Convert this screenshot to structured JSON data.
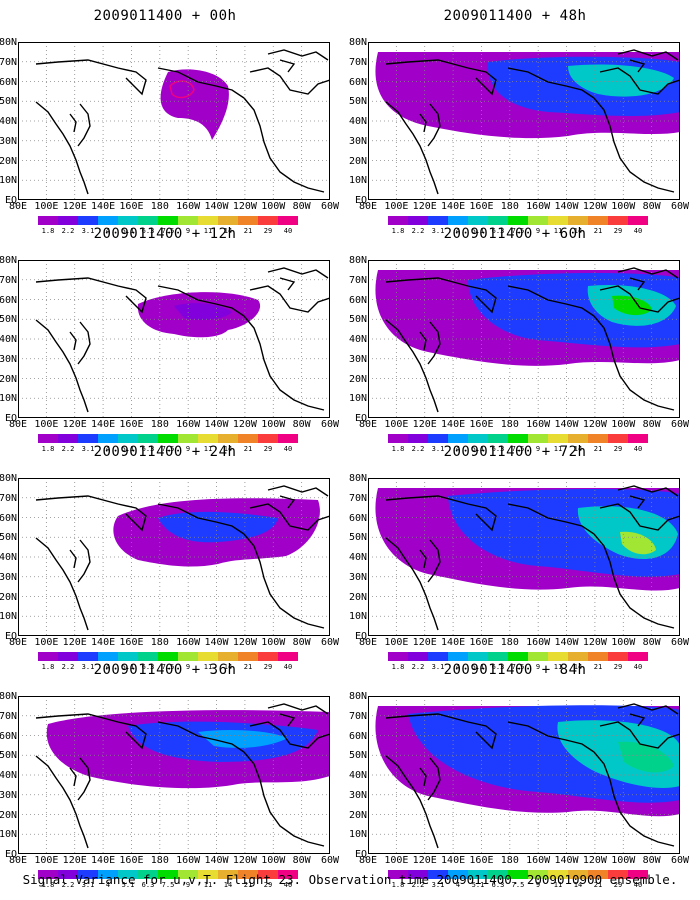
{
  "panels": [
    {
      "title": "2009011400 + 00h",
      "intensity": 0
    },
    {
      "title": "2009011400 + 48h",
      "intensity": 4
    },
    {
      "title": "2009011400 + 12h",
      "intensity": 1
    },
    {
      "title": "2009011400 + 60h",
      "intensity": 5
    },
    {
      "title": "2009011400 + 24h",
      "intensity": 2
    },
    {
      "title": "2009011400 + 72h",
      "intensity": 6
    },
    {
      "title": "2009011400 + 36h",
      "intensity": 3
    },
    {
      "title": "2009011400 + 84h",
      "intensity": 7
    }
  ],
  "lat_labels": [
    "80N",
    "70N",
    "60N",
    "50N",
    "40N",
    "30N",
    "20N",
    "10N",
    "EQ"
  ],
  "lon_labels": [
    "80E",
    "100E",
    "120E",
    "140E",
    "160E",
    "180",
    "160W",
    "140W",
    "120W",
    "100W",
    "80W",
    "60W"
  ],
  "colorbar": {
    "labels": [
      "1.8",
      "2.2",
      "3.1",
      "4",
      "5.1",
      "6.3",
      "7.5",
      "9",
      "11",
      "14",
      "21",
      "29",
      "40"
    ],
    "colors": [
      "#a000c8",
      "#8200dc",
      "#1e3cff",
      "#00a0ff",
      "#00c8c8",
      "#00d28c",
      "#00dc00",
      "#a0e632",
      "#e6dc32",
      "#e6af2d",
      "#f08228",
      "#fa3c3c",
      "#f00082"
    ]
  },
  "caption": "Signal Variance for u,v,T. Flight 23. Observation time 2009011400. 2009010900 ensemble."
}
